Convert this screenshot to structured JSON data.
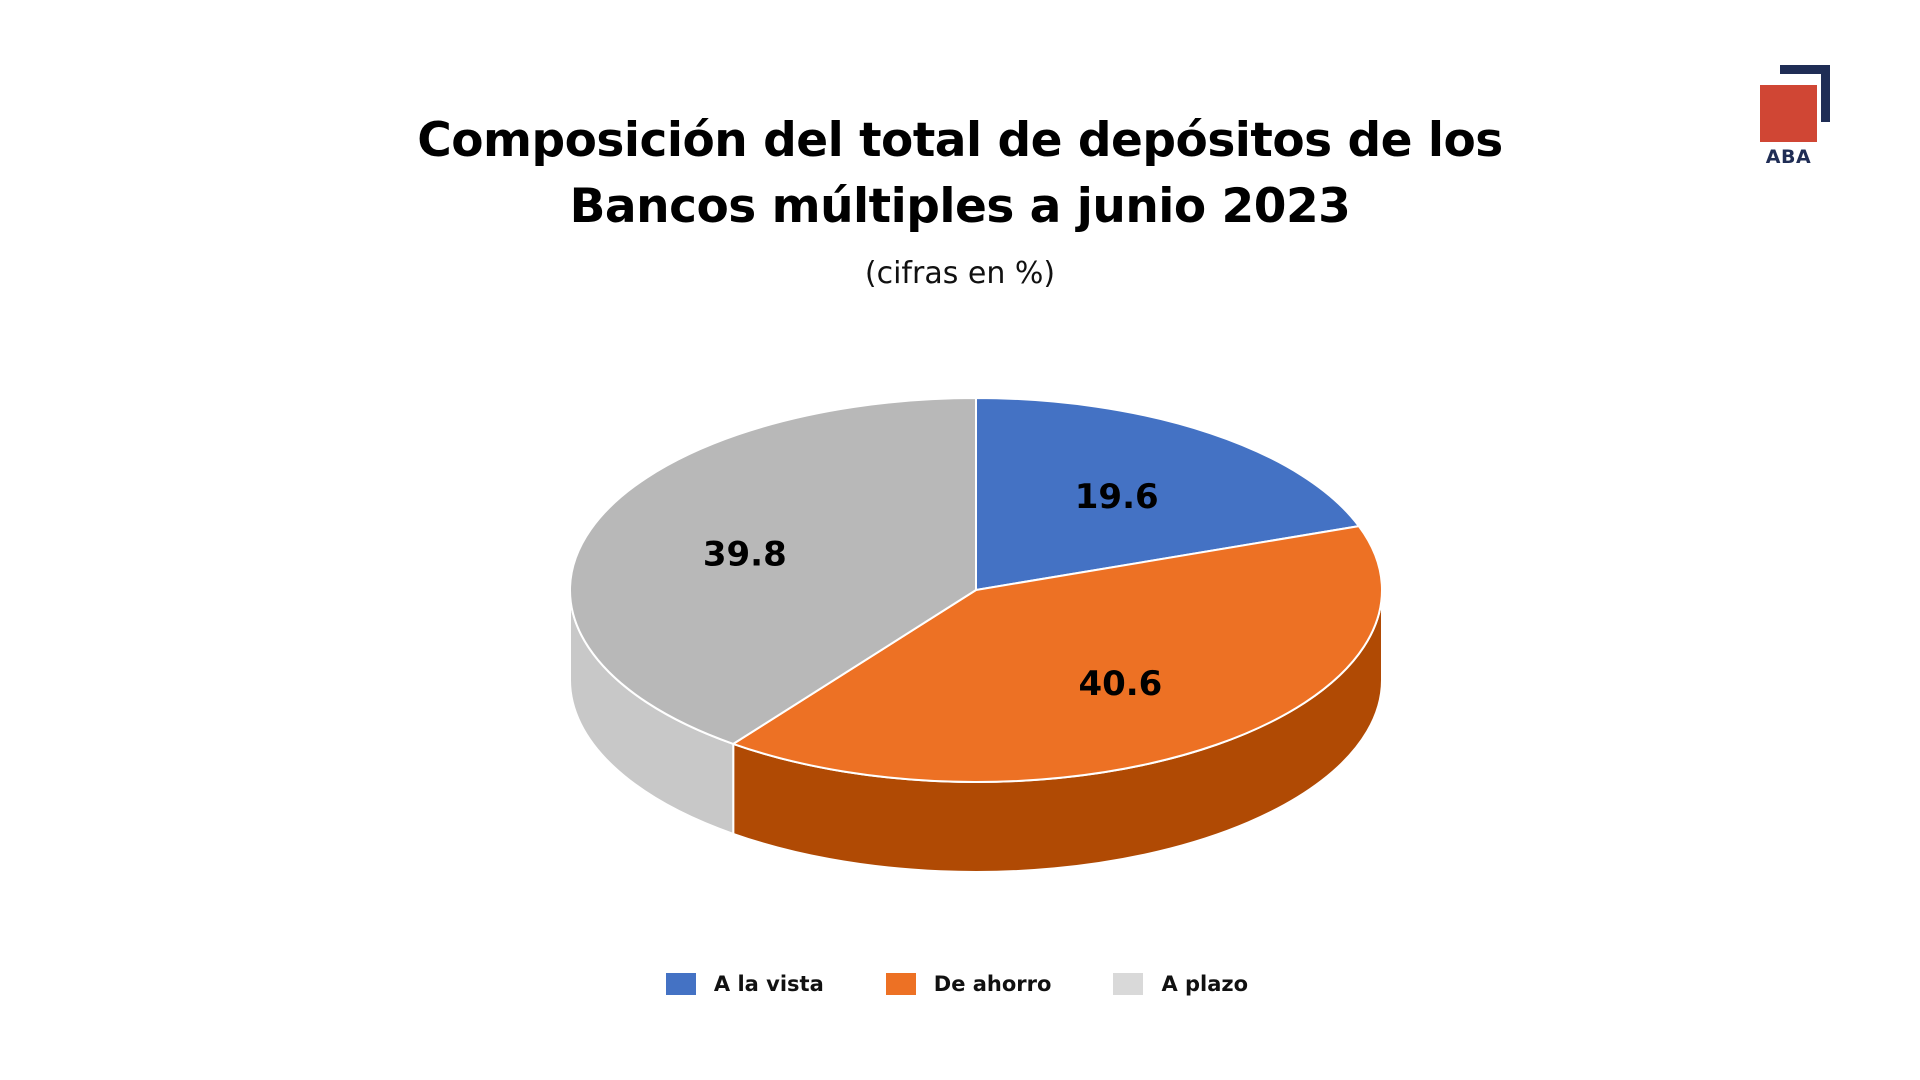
{
  "chart_data": {
    "type": "pie",
    "title": "Composición del total de depósitos de los Bancos múltiples a junio 2023",
    "title_lines": [
      "Composición del total de depósitos de los",
      "Bancos múltiples a junio 2023"
    ],
    "subtitle": "(cifras en %)",
    "categories": [
      "A la vista",
      "De ahorro",
      "A plazo"
    ],
    "values": [
      19.6,
      40.6,
      39.8
    ],
    "value_labels": [
      "19.6",
      "40.6",
      "39.8"
    ],
    "colors": [
      "#4472c4",
      "#ed7124",
      "#b8b8b8"
    ],
    "side_colors": [
      "#2f5597",
      "#b04a04",
      "#c8c8c8"
    ],
    "legend_colors": [
      "#4472c4",
      "#ed7124",
      "#d9d9d9"
    ],
    "style": "3d-tilted",
    "legend_position": "bottom"
  },
  "logo": {
    "text": "ABA",
    "colors": {
      "square": "#d04634",
      "bracket": "#1f2d55"
    }
  }
}
